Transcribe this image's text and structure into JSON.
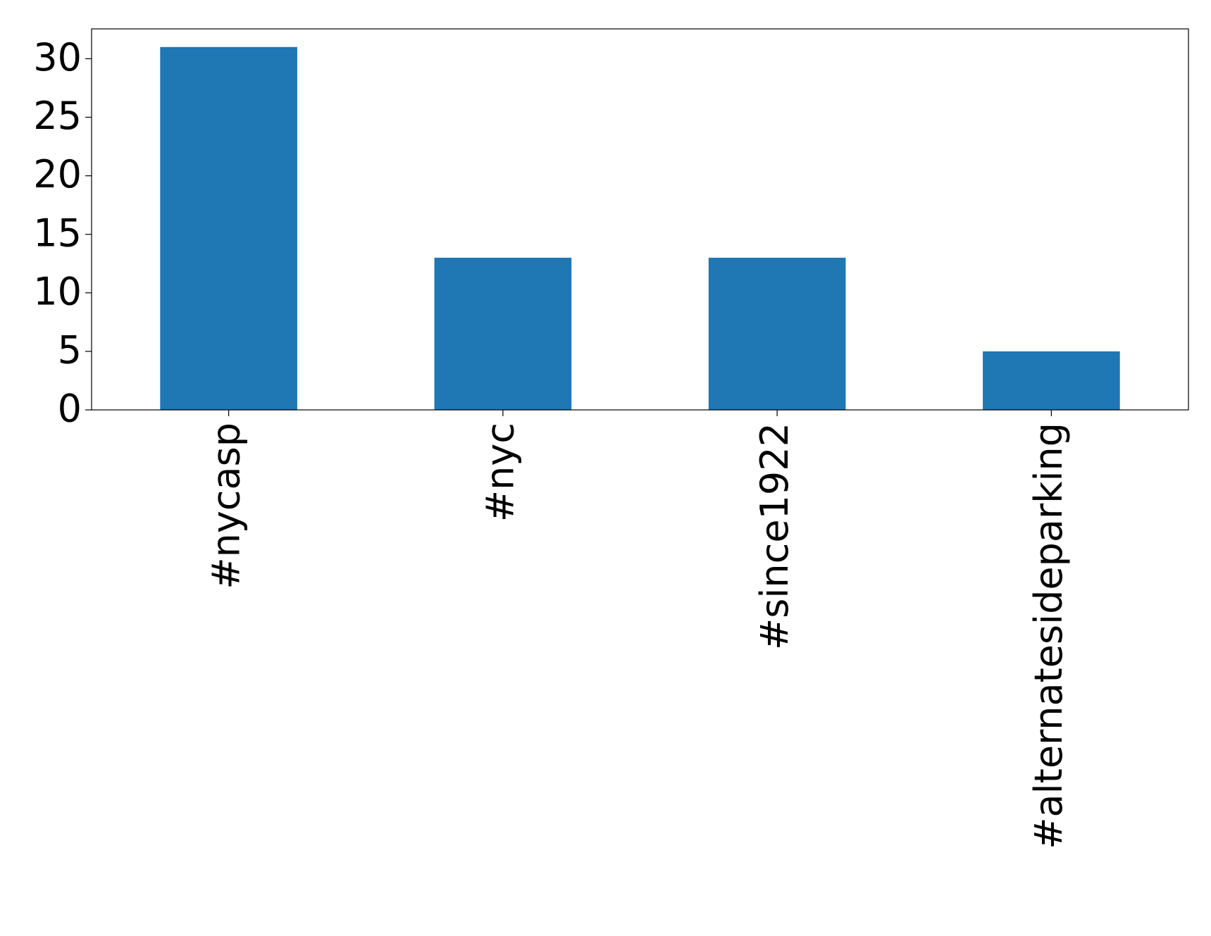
{
  "chart_data": {
    "type": "bar",
    "categories": [
      "#nycasp",
      "#nyc",
      "#since1922",
      "#alternatesideparking"
    ],
    "values": [
      31,
      13,
      13,
      5
    ],
    "color": "#1f77b4",
    "ylim": [
      0,
      32.55
    ],
    "yticks": [
      0,
      5,
      10,
      15,
      20,
      25,
      30
    ],
    "grid": false
  }
}
